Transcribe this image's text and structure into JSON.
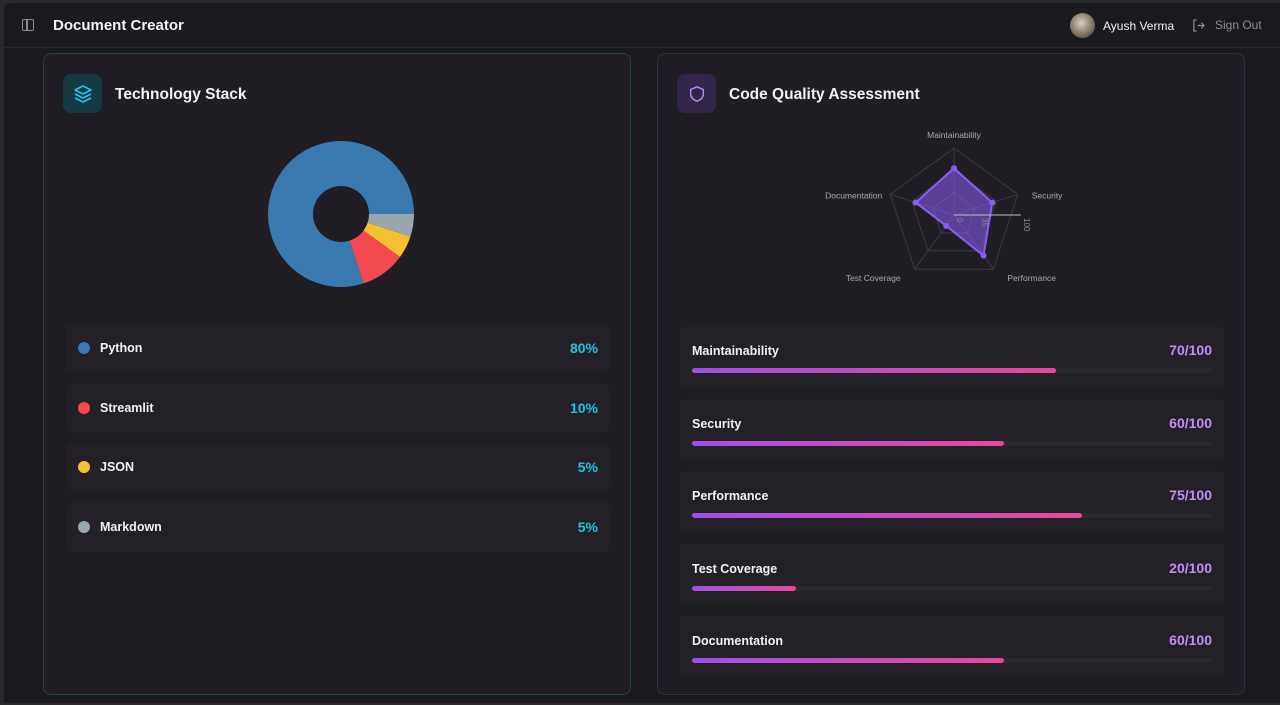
{
  "header": {
    "title": "Document Creator",
    "user_name": "Ayush Verma",
    "sign_out": "Sign Out"
  },
  "tech_stack": {
    "title": "Technology Stack",
    "items": [
      {
        "name": "Python",
        "percent": 80,
        "label": "80%",
        "color": "#3a78b0"
      },
      {
        "name": "Streamlit",
        "percent": 10,
        "label": "10%",
        "color": "#f24a4e"
      },
      {
        "name": "JSON",
        "percent": 5,
        "label": "5%",
        "color": "#f6c030"
      },
      {
        "name": "Markdown",
        "percent": 5,
        "label": "5%",
        "color": "#98a6ae"
      }
    ]
  },
  "code_quality": {
    "title": "Code Quality Assessment",
    "radar_ticks": [
      "0",
      "35",
      "100"
    ],
    "metrics": [
      {
        "name": "Maintainability",
        "value": 70,
        "label": "70/100"
      },
      {
        "name": "Security",
        "value": 60,
        "label": "60/100"
      },
      {
        "name": "Performance",
        "value": 75,
        "label": "75/100"
      },
      {
        "name": "Test Coverage",
        "value": 20,
        "label": "20/100"
      },
      {
        "name": "Documentation",
        "value": 60,
        "label": "60/100"
      }
    ]
  },
  "chart_data": [
    {
      "type": "pie",
      "categories": [
        "Python",
        "Streamlit",
        "JSON",
        "Markdown"
      ],
      "values": [
        80,
        10,
        5,
        5
      ]
    },
    {
      "type": "radar",
      "categories": [
        "Maintainability",
        "Security",
        "Performance",
        "Test Coverage",
        "Documentation"
      ],
      "values": [
        70,
        60,
        75,
        20,
        60
      ],
      "range": [
        0,
        100
      ]
    }
  ],
  "colors": {
    "accent_teal": "#22c3e6",
    "accent_purple": "#c48cf5",
    "radar": "#8b5cf6"
  }
}
